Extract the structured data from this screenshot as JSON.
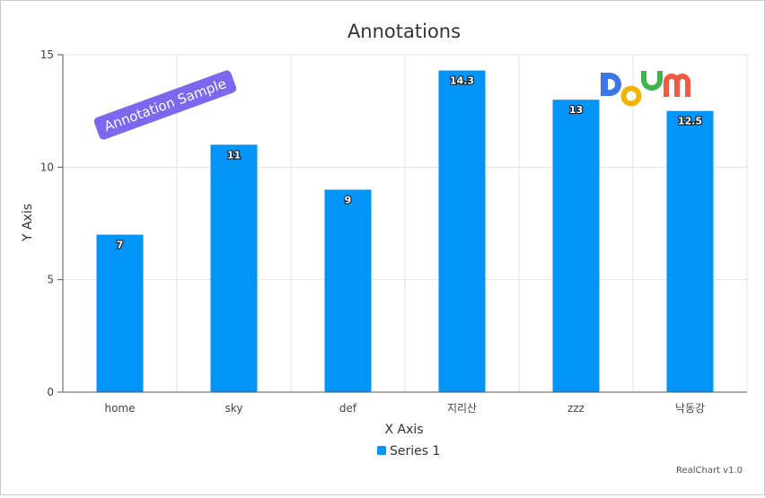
{
  "chart_data": {
    "type": "bar",
    "title": "Annotations",
    "xlabel": "X Axis",
    "ylabel": "Y Axis",
    "categories": [
      "home",
      "sky",
      "def",
      "지리산",
      "zzz",
      "낙동강"
    ],
    "series": [
      {
        "name": "Series 1",
        "values": [
          7,
          11,
          9,
          14.3,
          13,
          12.5
        ],
        "color": "#0394f8"
      }
    ],
    "ylim": [
      0,
      15
    ],
    "yticks": [
      "0",
      "5",
      "10",
      "15"
    ],
    "data_labels": [
      "7",
      "11",
      "9",
      "14.3",
      "13",
      "12.5"
    ],
    "grid": true,
    "legend": "bottom",
    "annotations": [
      {
        "type": "text",
        "text": "Annotation Sample",
        "color": "#7b68ee"
      },
      {
        "type": "image",
        "logo": "Daum",
        "colors": [
          "#3d76e8",
          "#f0b400",
          "#3fb44b",
          "#f25b43"
        ]
      }
    ]
  },
  "credit": "RealChart v1.0"
}
